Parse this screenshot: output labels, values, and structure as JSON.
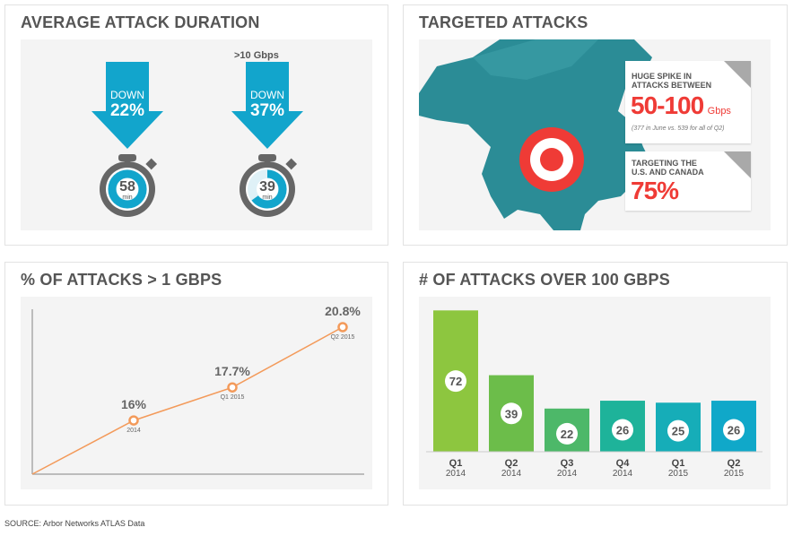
{
  "panels": {
    "duration": {
      "title": "AVERAGE ATTACK DURATION",
      "items": [
        {
          "note": "",
          "direction": "DOWN",
          "change": "22%",
          "minutes": "58",
          "unit": "min",
          "fill": 1.0
        },
        {
          "note": ">10 Gbps",
          "direction": "DOWN",
          "change": "37%",
          "minutes": "39",
          "unit": "min",
          "fill": 0.65
        }
      ],
      "color": "#12a5cc"
    },
    "targeted": {
      "title": "TARGETED ATTACKS",
      "card1": {
        "line1": "HUGE SPIKE IN",
        "line2": "ATTACKS BETWEEN",
        "value": "50-100",
        "unit": "Gbps",
        "note": "(377 in June vs. 539 for all of Q2)"
      },
      "card2": {
        "line1": "TARGETING THE",
        "line2": "U.S. AND CANADA",
        "value": "75%"
      },
      "map_color": "#2b8c96",
      "accent": "#ef3b36"
    },
    "line": {
      "title": "% OF ATTACKS > 1 GBPS"
    },
    "bars": {
      "title": "# OF ATTACKS OVER 100 GBPS"
    }
  },
  "chart_data": [
    {
      "type": "line",
      "title": "% OF ATTACKS > 1 GBPS",
      "categories": [
        "2014",
        "Q1 2015",
        "Q2 2015"
      ],
      "values": [
        16,
        17.7,
        20.8
      ],
      "data_labels": [
        "16%",
        "17.7%",
        "20.8%"
      ],
      "color": "#f39a5a"
    },
    {
      "type": "bar",
      "title": "# OF ATTACKS OVER 100 GBPS",
      "categories": [
        [
          "Q1",
          "2014"
        ],
        [
          "Q2",
          "2014"
        ],
        [
          "Q3",
          "2014"
        ],
        [
          "Q4",
          "2014"
        ],
        [
          "Q1",
          "2015"
        ],
        [
          "Q2",
          "2015"
        ]
      ],
      "values": [
        72,
        39,
        22,
        26,
        25,
        26
      ],
      "colors": [
        "#8dc63f",
        "#6cbd4a",
        "#4db869",
        "#1eb39a",
        "#16adb8",
        "#10a8c9"
      ]
    }
  ],
  "source": "SOURCE: Arbor Networks ATLAS Data"
}
